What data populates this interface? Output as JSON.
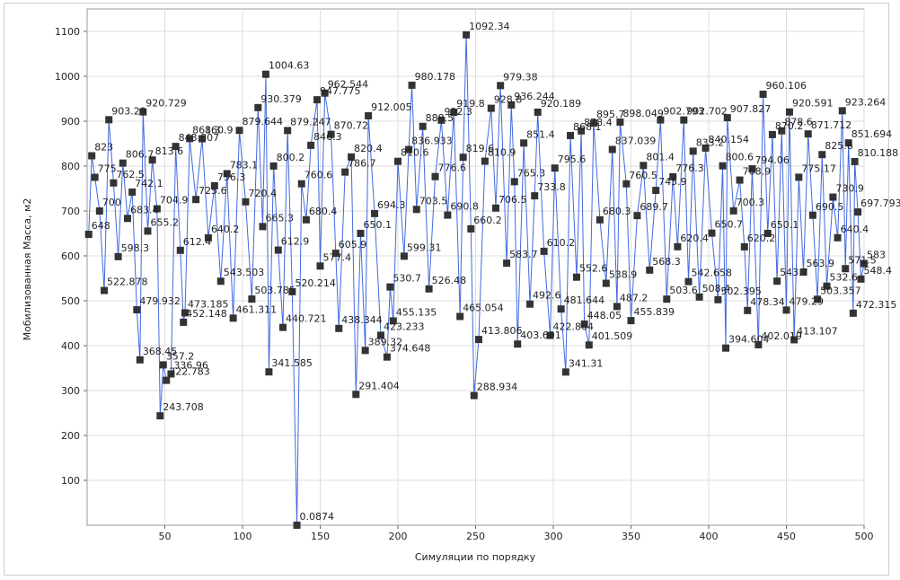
{
  "chart_data": {
    "type": "line",
    "x_label": "Симуляции по порядку",
    "y_label": "Мобилизованная Масса, м2",
    "color": "#4169e1",
    "marker_color": "#333333",
    "grid": true,
    "xlim": [
      0,
      500
    ],
    "ylim": [
      0,
      1150
    ],
    "xticks": [
      50,
      100,
      150,
      200,
      250,
      300,
      350,
      400,
      450,
      500
    ],
    "yticks": [
      100,
      200,
      300,
      400,
      500,
      600,
      700,
      800,
      900,
      1000,
      1100
    ],
    "x": [
      1,
      3,
      5,
      8,
      11,
      14,
      17,
      20,
      23,
      26,
      29,
      32,
      34,
      36,
      39,
      42,
      45,
      47,
      49,
      51,
      54,
      57,
      60,
      62,
      63,
      66,
      70,
      74,
      78,
      82,
      86,
      90,
      94,
      98,
      102,
      106,
      110,
      113,
      115,
      117,
      120,
      123,
      126,
      129,
      132,
      135,
      138,
      141,
      144,
      148,
      150,
      153,
      157,
      160,
      162,
      166,
      170,
      173,
      176,
      179,
      181,
      185,
      189,
      193,
      195,
      197,
      200,
      204,
      207,
      209,
      212,
      216,
      220,
      224,
      228,
      232,
      236,
      240,
      242,
      244,
      247,
      249,
      252,
      256,
      260,
      263,
      266,
      270,
      273,
      275,
      277,
      281,
      285,
      288,
      290,
      294,
      298,
      301,
      305,
      308,
      311,
      315,
      318,
      320,
      323,
      326,
      330,
      334,
      338,
      341,
      343,
      347,
      350,
      354,
      358,
      362,
      366,
      369,
      373,
      377,
      380,
      384,
      387,
      390,
      394,
      398,
      402,
      406,
      409,
      411,
      412,
      416,
      420,
      423,
      425,
      428,
      432,
      435,
      438,
      441,
      444,
      447,
      450,
      452,
      455,
      458,
      461,
      464,
      467,
      470,
      473,
      476,
      480,
      483,
      486,
      488,
      490,
      493,
      494,
      496,
      498,
      500
    ],
    "values": [
      648,
      823,
      775,
      700,
      522.878,
      903.29,
      762.5,
      598.3,
      806.7,
      683.4,
      742.1,
      479.932,
      368.45,
      920.729,
      655.2,
      813.6,
      704.9,
      243.708,
      357.2,
      322.783,
      336.96,
      843.807,
      612.4,
      452.148,
      473.185,
      861.3,
      725.6,
      860.9,
      640.2,
      756.3,
      543.503,
      783.1,
      461.311,
      879.644,
      720.4,
      503.785,
      930.379,
      665.3,
      1004.63,
      341.585,
      800.2,
      612.9,
      440.721,
      879.247,
      520.214,
      0.0874,
      760.6,
      680.4,
      846.3,
      947.775,
      577.4,
      962.544,
      870.72,
      605.9,
      438.344,
      786.7,
      820.4,
      291.404,
      650.1,
      389.32,
      912.005,
      694.3,
      423.233,
      374.648,
      530.7,
      455.135,
      810.6,
      599.31,
      836.933,
      980.178,
      703.5,
      888.5,
      526.48,
      776.6,
      902.3,
      690.8,
      919.8,
      465.054,
      819.6,
      1092.34,
      660.2,
      288.934,
      413.806,
      810.9,
      928.8,
      706.5,
      979.38,
      583.7,
      936.244,
      765.3,
      403.601,
      851.4,
      492.6,
      733.8,
      920.189,
      610.2,
      422.864,
      795.6,
      481.644,
      341.31,
      868.1,
      552.6,
      878.4,
      448.05,
      401.509,
      895.7,
      680.3,
      538.9,
      837.039,
      487.2,
      898.049,
      760.5,
      455.839,
      689.7,
      801.4,
      568.3,
      745.9,
      902.793,
      503.6,
      776.3,
      620.4,
      902.702,
      542.658,
      833.2,
      508.4,
      840.154,
      650.7,
      502.395,
      800.6,
      394.604,
      907.827,
      700.3,
      768.9,
      620.2,
      478.34,
      794.06,
      402.019,
      960.106,
      650.1,
      870.2,
      543.7,
      878.6,
      479.29,
      920.591,
      413.107,
      775.17,
      563.9,
      871.712,
      690.5,
      503.357,
      825.6,
      532.6,
      730.9,
      640.4,
      923.264,
      571.5,
      851.694,
      472.315,
      810.188,
      697.793,
      548.4,
      583
    ]
  }
}
